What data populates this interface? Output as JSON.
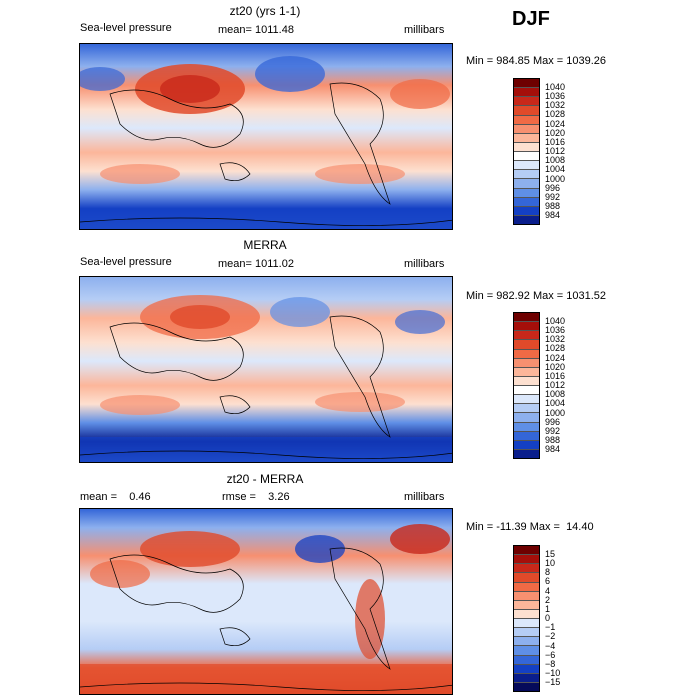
{
  "season": "DJF",
  "panels": [
    {
      "title": "zt20 (yrs 1-1)",
      "left_label": "Sea-level pressure",
      "center_label": "mean= 1011.48",
      "right_label": "millibars",
      "stats": "Min = 984.85 Max = 1039.26",
      "colorbar_labels": [
        "1040",
        "1036",
        "1032",
        "1028",
        "1024",
        "1020",
        "1016",
        "1012",
        "1008",
        "1004",
        "1000",
        "996",
        "992",
        "988",
        "984"
      ],
      "colorbar_colors": [
        "#6e0000",
        "#a50f0a",
        "#c8281a",
        "#e04a2a",
        "#f06a45",
        "#f79070",
        "#fcb69a",
        "#fde0d0",
        "#ffffff",
        "#dce8fb",
        "#b5cdf5",
        "#8db0ee",
        "#5f8fe6",
        "#3466d8",
        "#1440c4",
        "#0a1e8c"
      ]
    },
    {
      "title": "MERRA",
      "left_label": "Sea-level pressure",
      "center_label": "mean= 1011.02",
      "right_label": "millibars",
      "stats": "Min = 982.92 Max = 1031.52",
      "colorbar_labels": [
        "1040",
        "1036",
        "1032",
        "1028",
        "1024",
        "1020",
        "1016",
        "1012",
        "1008",
        "1004",
        "1000",
        "996",
        "992",
        "988",
        "984"
      ],
      "colorbar_colors": [
        "#6e0000",
        "#a50f0a",
        "#c8281a",
        "#e04a2a",
        "#f06a45",
        "#f79070",
        "#fcb69a",
        "#fde0d0",
        "#ffffff",
        "#dce8fb",
        "#b5cdf5",
        "#8db0ee",
        "#5f8fe6",
        "#3466d8",
        "#1440c4",
        "#0a1e8c"
      ]
    },
    {
      "title": "zt20 - MERRA",
      "left_label": "mean =    0.46",
      "center_label": "rmse =    3.26",
      "right_label": "millibars",
      "stats": "Min = -11.39 Max =  14.40",
      "colorbar_labels": [
        "15",
        "10",
        "8",
        "6",
        "4",
        "2",
        "1",
        "0",
        "−1",
        "−2",
        "−4",
        "−6",
        "−8",
        "−10",
        "−15"
      ],
      "colorbar_colors": [
        "#6e0000",
        "#a50f0a",
        "#c8281a",
        "#e04a2a",
        "#f06a45",
        "#f79070",
        "#fcb69a",
        "#fde0d0",
        "#dce8fb",
        "#b5cdf5",
        "#8db0ee",
        "#5f8fe6",
        "#3466d8",
        "#1440c4",
        "#0a1e8c",
        "#050a5a"
      ]
    }
  ]
}
